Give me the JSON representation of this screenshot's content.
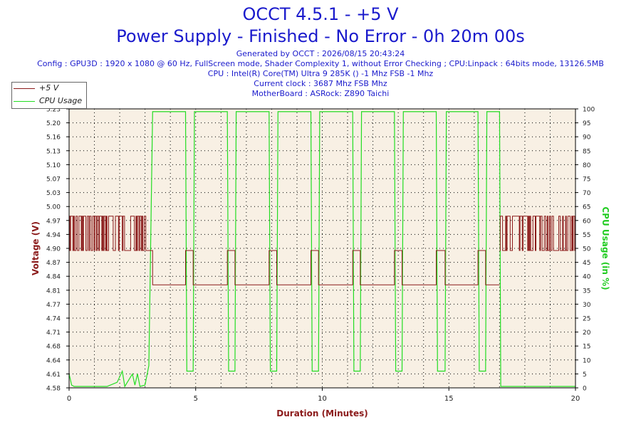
{
  "header": {
    "title": "OCCT 4.5.1 - +5 V",
    "subtitle": "Power Supply - Finished - No Error - 0h 20m 00s",
    "generated": "Generated by OCCT : 2026/08/15 20:43:24",
    "config": "Config : GPU3D : 1920 x 1080 @ 60 Hz, FullScreen mode, Shader Complexity 1, without Error Checking ; CPU:Linpack : 64bits mode, 13126.5MB",
    "cpu": "CPU : Intel(R) Core(TM) Ultra 9 285K () -1 Mhz FSB -1 Mhz",
    "clock": "Current clock : 3687 Mhz FSB  Mhz",
    "motherboard": "MotherBoard : ASRock: Z890 Taichi"
  },
  "colors": {
    "voltage": "#8b1a1a",
    "cpu": "#22dd22",
    "plot_bg": "#f8f0e4",
    "title": "#1a1acc",
    "axis_label_red": "#8b1a1a",
    "axis_label_green": "#22cc22"
  },
  "chart_data": {
    "type": "line",
    "xlabel": "Duration (Minutes)",
    "ylabel": "Voltage (V)",
    "y2label": "CPU Usage (in %)",
    "xlim": [
      0,
      20
    ],
    "ylim": [
      4.58,
      5.23
    ],
    "y2lim": [
      0,
      100
    ],
    "x_ticks": [
      0,
      5,
      10,
      15,
      20
    ],
    "y_ticks": [
      "4.58",
      "4.61",
      "4.64",
      "4.68",
      "4.71",
      "4.74",
      "4.77",
      "4.81",
      "4.84",
      "4.87",
      "4.90",
      "4.94",
      "4.97",
      "5.00",
      "5.03",
      "5.07",
      "5.10",
      "5.13",
      "5.16",
      "5.20",
      "5.23"
    ],
    "y2_ticks": [
      0,
      5,
      10,
      15,
      20,
      25,
      30,
      35,
      40,
      45,
      50,
      55,
      60,
      65,
      70,
      75,
      80,
      85,
      90,
      95,
      100
    ],
    "grid": true,
    "legend": {
      "position": "top-left",
      "entries": [
        "+5 V",
        "CPU Usage"
      ]
    },
    "series": [
      {
        "name": "+5 V",
        "axis": "left",
        "x": [
          0.0,
          3.05,
          3.05,
          3.3,
          3.3,
          4.6,
          4.6,
          4.9,
          4.9,
          6.25,
          6.25,
          6.55,
          6.55,
          7.9,
          7.9,
          8.2,
          8.2,
          9.55,
          9.55,
          9.85,
          9.85,
          11.2,
          11.2,
          11.5,
          11.5,
          12.85,
          12.85,
          13.15,
          13.15,
          14.5,
          14.5,
          14.85,
          14.85,
          16.15,
          16.15,
          16.45,
          16.45,
          17.0,
          17.0,
          20.0
        ],
        "y": [
          4.935,
          4.935,
          4.9,
          4.9,
          4.82,
          4.82,
          4.9,
          4.9,
          4.82,
          4.82,
          4.9,
          4.9,
          4.82,
          4.82,
          4.9,
          4.9,
          4.82,
          4.82,
          4.9,
          4.9,
          4.82,
          4.82,
          4.9,
          4.9,
          4.82,
          4.82,
          4.9,
          4.9,
          4.82,
          4.82,
          4.9,
          4.9,
          4.82,
          4.82,
          4.9,
          4.9,
          4.82,
          4.82,
          4.935,
          4.935
        ],
        "noise_bands": [
          {
            "x_start": 0.0,
            "x_end": 3.05,
            "low": 4.9,
            "high": 4.98
          },
          {
            "x_start": 17.0,
            "x_end": 20.0,
            "low": 4.9,
            "high": 4.98
          }
        ]
      },
      {
        "name": "CPU Usage",
        "axis": "right",
        "x": [
          0.0,
          0.1,
          0.2,
          1.5,
          1.9,
          2.1,
          2.2,
          2.5,
          2.6,
          2.7,
          2.8,
          3.0,
          3.15,
          3.3,
          4.6,
          4.65,
          4.9,
          4.95,
          6.25,
          6.3,
          6.55,
          6.6,
          7.9,
          7.95,
          8.2,
          8.25,
          9.55,
          9.6,
          9.85,
          9.9,
          11.2,
          11.25,
          11.5,
          11.55,
          12.85,
          12.9,
          13.15,
          13.2,
          14.5,
          14.55,
          14.85,
          14.9,
          16.15,
          16.2,
          16.45,
          16.5,
          17.0,
          17.05,
          20.0
        ],
        "y": [
          5,
          1,
          0.5,
          0.5,
          2,
          6,
          0.5,
          5,
          1,
          5,
          0.5,
          1,
          8,
          99,
          99,
          6,
          6,
          99,
          99,
          6,
          6,
          99,
          99,
          6,
          6,
          99,
          99,
          6,
          6,
          99,
          99,
          6,
          6,
          99,
          99,
          6,
          6,
          99,
          99,
          6,
          6,
          99,
          99,
          6,
          6,
          99,
          99,
          0.5,
          0.5
        ]
      }
    ]
  }
}
